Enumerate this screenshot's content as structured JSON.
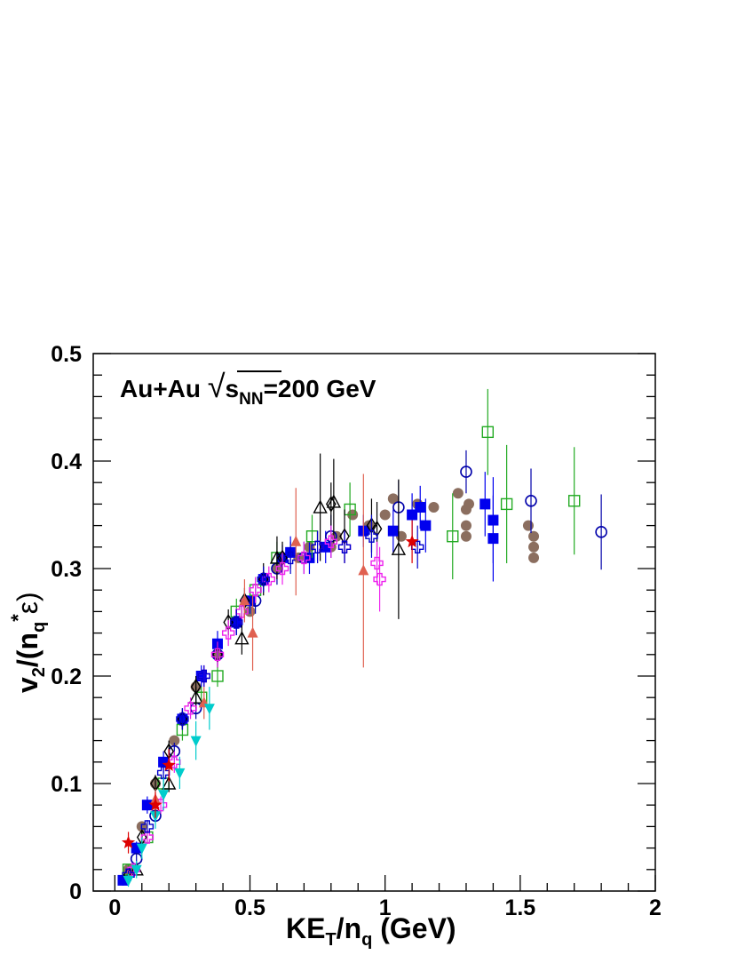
{
  "chart_data": {
    "type": "scatter",
    "annotation": {
      "prefix": "Au+Au ",
      "sqrt_symbol": "√",
      "s": "s",
      "sub": "NN",
      "suffix": "=200 GeV"
    },
    "xlabel": {
      "main": "KE",
      "sub1": "T",
      "mid": "/n",
      "sub2": "q",
      "tail": " (GeV)"
    },
    "ylabel": {
      "v": "v",
      "sub2": "2",
      "mid": "/(n",
      "subq": "q",
      "sup": "*",
      "eps": "ε)"
    },
    "xlim": [
      -0.08,
      2.0
    ],
    "ylim": [
      0,
      0.5
    ],
    "xticks": [
      0,
      0.5,
      1,
      1.5,
      2
    ],
    "xtick_labels": [
      "0",
      "0.5",
      "1",
      "1.5",
      "2"
    ],
    "yticks": [
      0,
      0.1,
      0.2,
      0.3,
      0.4,
      0.5
    ],
    "ytick_labels": [
      "0",
      "0.1",
      "0.2",
      "0.3",
      "0.4",
      "0.5"
    ],
    "grid": false,
    "series": [
      {
        "marker": "filled-circle",
        "color": "#8b6e5f",
        "points": [
          [
            0.05,
            0.02
          ],
          [
            0.1,
            0.06
          ],
          [
            0.15,
            0.1
          ],
          [
            0.22,
            0.14
          ],
          [
            0.3,
            0.19
          ],
          [
            0.38,
            0.22
          ],
          [
            0.45,
            0.25
          ],
          [
            0.5,
            0.26
          ],
          [
            0.6,
            0.3
          ],
          [
            0.68,
            0.31
          ],
          [
            0.72,
            0.32
          ],
          [
            0.8,
            0.32
          ],
          [
            0.82,
            0.33
          ],
          [
            0.88,
            0.35
          ],
          [
            0.94,
            0.34
          ],
          [
            1.0,
            0.35
          ],
          [
            1.03,
            0.365
          ],
          [
            1.06,
            0.33
          ],
          [
            1.12,
            0.36
          ],
          [
            1.18,
            0.357
          ],
          [
            1.27,
            0.37
          ],
          [
            1.3,
            0.355
          ],
          [
            1.3,
            0.34
          ],
          [
            1.3,
            0.33
          ],
          [
            1.31,
            0.36
          ],
          [
            1.53,
            0.34
          ],
          [
            1.55,
            0.33
          ],
          [
            1.55,
            0.32
          ],
          [
            1.55,
            0.31
          ]
        ]
      },
      {
        "marker": "filled-square",
        "color": "#0000ee",
        "points": [
          [
            0.03,
            0.01
          ],
          [
            0.08,
            0.04
          ],
          [
            0.12,
            0.08
          ],
          [
            0.18,
            0.12
          ],
          [
            0.25,
            0.16
          ],
          [
            0.32,
            0.2
          ],
          [
            0.38,
            0.23
          ],
          [
            0.45,
            0.25
          ],
          [
            0.5,
            0.27
          ],
          [
            0.55,
            0.29
          ],
          [
            0.62,
            0.31
          ],
          [
            0.65,
            0.315
          ],
          [
            0.72,
            0.31
          ],
          [
            0.78,
            0.32
          ],
          [
            0.92,
            0.335
          ],
          [
            1.03,
            0.335
          ],
          [
            1.1,
            0.35
          ],
          [
            1.13,
            0.357
          ],
          [
            1.15,
            0.34
          ],
          [
            1.37,
            0.36
          ],
          [
            1.4,
            0.345
          ],
          [
            1.4,
            0.328
          ]
        ],
        "err": [
          0.005,
          0.006,
          0.008,
          0.01,
          0.01,
          0.01,
          0.012,
          0.01,
          0.012,
          0.012,
          0.012,
          0.015,
          0.015,
          0.015,
          0.015,
          0.02,
          0.02,
          0.02,
          0.025,
          0.03,
          0.04,
          0.04
        ]
      },
      {
        "marker": "open-square",
        "color": "#22aa22",
        "points": [
          [
            0.05,
            0.02
          ],
          [
            0.12,
            0.05
          ],
          [
            0.18,
            0.1
          ],
          [
            0.25,
            0.15
          ],
          [
            0.32,
            0.18
          ],
          [
            0.38,
            0.2
          ],
          [
            0.45,
            0.26
          ],
          [
            0.52,
            0.28
          ],
          [
            0.6,
            0.31
          ],
          [
            0.73,
            0.33
          ],
          [
            0.87,
            0.355
          ],
          [
            1.25,
            0.33
          ],
          [
            1.38,
            0.427
          ],
          [
            1.45,
            0.36
          ],
          [
            1.7,
            0.363
          ]
        ],
        "err": [
          0.005,
          0.006,
          0.008,
          0.01,
          0.01,
          0.01,
          0.012,
          0.012,
          0.015,
          0.02,
          0.025,
          0.04,
          0.04,
          0.055,
          0.05
        ]
      },
      {
        "marker": "open-circle",
        "color": "#0000aa",
        "points": [
          [
            0.08,
            0.03
          ],
          [
            0.15,
            0.07
          ],
          [
            0.22,
            0.13
          ],
          [
            0.3,
            0.17
          ],
          [
            0.38,
            0.22
          ],
          [
            0.45,
            0.25
          ],
          [
            0.52,
            0.27
          ],
          [
            0.6,
            0.3
          ],
          [
            0.7,
            0.31
          ],
          [
            0.8,
            0.33
          ],
          [
            1.05,
            0.357
          ],
          [
            1.3,
            0.39
          ],
          [
            1.54,
            0.363
          ],
          [
            1.8,
            0.334
          ]
        ],
        "err": [
          0.005,
          0.006,
          0.008,
          0.01,
          0.01,
          0.012,
          0.012,
          0.015,
          0.015,
          0.02,
          0.025,
          0.02,
          0.03,
          0.035
        ]
      },
      {
        "marker": "open-triangle",
        "color": "#000000",
        "points": [
          [
            0.08,
            0.02
          ],
          [
            0.2,
            0.1
          ],
          [
            0.3,
            0.18
          ],
          [
            0.47,
            0.235
          ],
          [
            0.6,
            0.31
          ],
          [
            0.76,
            0.357
          ],
          [
            0.81,
            0.362
          ],
          [
            1.05,
            0.318
          ]
        ],
        "err": [
          0.006,
          0.008,
          0.01,
          0.015,
          0.02,
          0.05,
          0.04,
          0.065
        ]
      },
      {
        "marker": "open-diamond",
        "color": "#000000",
        "points": [
          [
            0.05,
            0.015
          ],
          [
            0.1,
            0.05
          ],
          [
            0.15,
            0.1
          ],
          [
            0.2,
            0.13
          ],
          [
            0.25,
            0.16
          ],
          [
            0.3,
            0.19
          ],
          [
            0.38,
            0.22
          ],
          [
            0.42,
            0.25
          ],
          [
            0.48,
            0.27
          ],
          [
            0.55,
            0.29
          ],
          [
            0.62,
            0.31
          ],
          [
            0.8,
            0.36
          ],
          [
            0.85,
            0.33
          ],
          [
            0.95,
            0.34
          ],
          [
            0.97,
            0.337
          ]
        ],
        "err": [
          0.005,
          0.006,
          0.008,
          0.01,
          0.01,
          0.01,
          0.012,
          0.012,
          0.012,
          0.015,
          0.015,
          0.02,
          0.025,
          0.025,
          0.025
        ]
      },
      {
        "marker": "open-cross",
        "color": "#ee22ee",
        "points": [
          [
            0.07,
            0.02
          ],
          [
            0.12,
            0.05
          ],
          [
            0.17,
            0.08
          ],
          [
            0.22,
            0.12
          ],
          [
            0.28,
            0.17
          ],
          [
            0.33,
            0.2
          ],
          [
            0.38,
            0.22
          ],
          [
            0.42,
            0.24
          ],
          [
            0.47,
            0.26
          ],
          [
            0.52,
            0.28
          ],
          [
            0.57,
            0.29
          ],
          [
            0.62,
            0.3
          ],
          [
            0.7,
            0.31
          ],
          [
            0.75,
            0.32
          ],
          [
            0.8,
            0.325
          ],
          [
            0.85,
            0.32
          ],
          [
            0.97,
            0.305
          ],
          [
            0.98,
            0.29
          ]
        ],
        "err": [
          0.005,
          0.006,
          0.008,
          0.01,
          0.01,
          0.01,
          0.012,
          0.012,
          0.012,
          0.012,
          0.012,
          0.015,
          0.015,
          0.015,
          0.015,
          0.015,
          0.02,
          0.03
        ]
      },
      {
        "marker": "open-cross",
        "color": "#0000cc",
        "points": [
          [
            0.05,
            0.015
          ],
          [
            0.12,
            0.06
          ],
          [
            0.18,
            0.11
          ],
          [
            0.25,
            0.16
          ],
          [
            0.33,
            0.2
          ],
          [
            0.45,
            0.25
          ],
          [
            0.55,
            0.29
          ],
          [
            0.65,
            0.31
          ],
          [
            0.75,
            0.32
          ],
          [
            0.85,
            0.32
          ],
          [
            0.95,
            0.33
          ],
          [
            1.12,
            0.32
          ]
        ],
        "err": [
          0.004,
          0.006,
          0.008,
          0.01,
          0.01,
          0.012,
          0.012,
          0.015,
          0.015,
          0.015,
          0.02,
          0.02
        ]
      },
      {
        "marker": "filled-triangle",
        "color": "#e06050",
        "points": [
          [
            0.15,
            0.085
          ],
          [
            0.33,
            0.175
          ],
          [
            0.48,
            0.27
          ],
          [
            0.51,
            0.24
          ],
          [
            0.67,
            0.325
          ],
          [
            0.92,
            0.298
          ]
        ],
        "err": [
          0.01,
          0.015,
          0.02,
          0.035,
          0.05,
          0.09
        ]
      },
      {
        "marker": "filled-triangle-down",
        "color": "#00cccc",
        "points": [
          [
            0.05,
            0.01
          ],
          [
            0.08,
            0.02
          ],
          [
            0.1,
            0.04
          ],
          [
            0.15,
            0.07
          ],
          [
            0.18,
            0.09
          ],
          [
            0.24,
            0.11
          ],
          [
            0.3,
            0.14
          ],
          [
            0.35,
            0.17
          ]
        ],
        "err": [
          0.006,
          0.008,
          0.01,
          0.012,
          0.015,
          0.015,
          0.018,
          0.02
        ]
      },
      {
        "marker": "filled-star",
        "color": "#dd0000",
        "points": [
          [
            0.05,
            0.045
          ],
          [
            0.15,
            0.08
          ],
          [
            0.2,
            0.117
          ],
          [
            1.1,
            0.325
          ]
        ],
        "err": [
          0.01,
          0.012,
          0.015,
          0.02
        ]
      }
    ]
  }
}
